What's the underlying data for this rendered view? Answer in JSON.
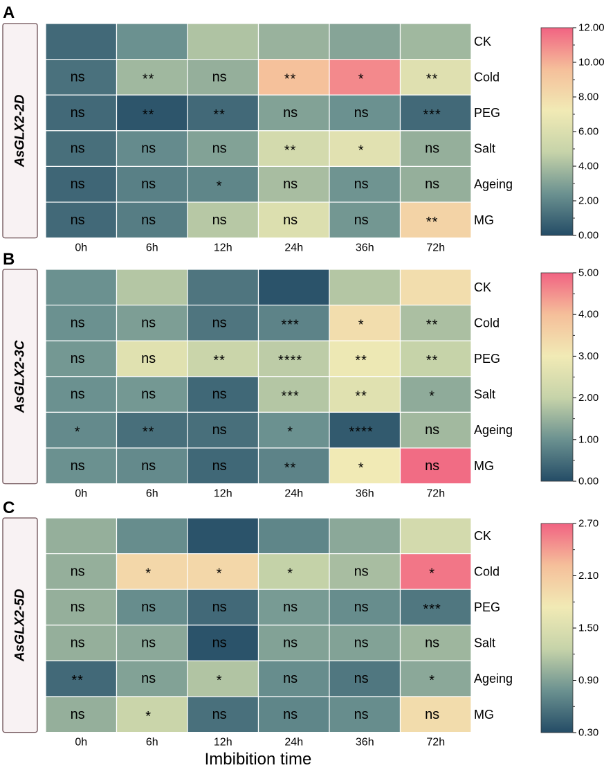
{
  "chart_data": [
    {
      "type": "heatmap",
      "panel": "A",
      "gene": "AsGLX2-2D",
      "rows": [
        "CK",
        "Cold",
        "PEG",
        "Salt",
        "Ageing",
        "MG"
      ],
      "columns": [
        "0h",
        "6h",
        "12h",
        "24h",
        "36h",
        "72h"
      ],
      "values": [
        [
          1.0,
          2.4,
          4.2,
          3.6,
          3.1,
          3.8
        ],
        [
          1.3,
          3.8,
          3.5,
          9.5,
          11.0,
          6.2
        ],
        [
          1.0,
          0.3,
          1.0,
          3.0,
          2.4,
          1.0
        ],
        [
          1.2,
          2.2,
          3.0,
          5.5,
          6.3,
          3.5
        ],
        [
          0.9,
          1.8,
          2.0,
          4.0,
          2.5,
          3.5
        ],
        [
          1.0,
          1.7,
          4.4,
          6.0,
          2.6,
          8.5
        ]
      ],
      "significance": [
        [
          "",
          "",
          "",
          "",
          "",
          ""
        ],
        [
          "ns",
          "**",
          "ns",
          "**",
          "*",
          "**"
        ],
        [
          "ns",
          "**",
          "**",
          "ns",
          "ns",
          "***"
        ],
        [
          "ns",
          "ns",
          "ns",
          "**",
          "*",
          "ns"
        ],
        [
          "ns",
          "ns",
          "*",
          "ns",
          "ns",
          "ns"
        ],
        [
          "ns",
          "ns",
          "ns",
          "ns",
          "ns",
          "**"
        ]
      ],
      "colorbar": {
        "min": 0.0,
        "max": 12.0,
        "ticks": [
          "0.00",
          "2.00",
          "4.00",
          "6.00",
          "8.00",
          "10.00",
          "12.00"
        ]
      }
    },
    {
      "type": "heatmap",
      "panel": "B",
      "gene": "AsGLX2-3C",
      "rows": [
        "CK",
        "Cold",
        "PEG",
        "Salt",
        "Ageing",
        "MG"
      ],
      "columns": [
        "0h",
        "6h",
        "12h",
        "24h",
        "36h",
        "72h"
      ],
      "values": [
        [
          1.0,
          1.8,
          0.6,
          0.1,
          1.8,
          3.3
        ],
        [
          1.0,
          1.2,
          0.6,
          0.8,
          3.3,
          1.7
        ],
        [
          1.1,
          2.6,
          2.1,
          1.9,
          2.9,
          2.0
        ],
        [
          1.0,
          1.1,
          0.4,
          1.8,
          2.6,
          1.4
        ],
        [
          0.9,
          0.5,
          0.5,
          1.0,
          0.2,
          1.6
        ],
        [
          1.0,
          0.9,
          0.4,
          0.8,
          3.0,
          4.9
        ]
      ],
      "significance": [
        [
          "",
          "",
          "",
          "",
          "",
          ""
        ],
        [
          "ns",
          "ns",
          "ns",
          "***",
          "*",
          "**"
        ],
        [
          "ns",
          "ns",
          "**",
          "****",
          "**",
          "**"
        ],
        [
          "ns",
          "ns",
          "ns",
          "***",
          "**",
          "*"
        ],
        [
          "*",
          "**",
          "ns",
          "*",
          "****",
          "ns"
        ],
        [
          "ns",
          "ns",
          "ns",
          "**",
          "*",
          "ns"
        ]
      ],
      "colorbar": {
        "min": 0.0,
        "max": 5.0,
        "ticks": [
          "0.00",
          "1.00",
          "2.00",
          "3.00",
          "4.00",
          "5.00"
        ]
      }
    },
    {
      "type": "heatmap",
      "panel": "C",
      "gene": "AsGLX2-5D",
      "rows": [
        "CK",
        "Cold",
        "PEG",
        "Salt",
        "Ageing",
        "MG"
      ],
      "columns": [
        "0h",
        "6h",
        "12h",
        "24h",
        "36h",
        "72h"
      ],
      "values": [
        [
          1.0,
          0.75,
          0.35,
          0.7,
          0.95,
          1.4
        ],
        [
          1.0,
          1.95,
          1.95,
          1.25,
          1.1,
          2.6
        ],
        [
          1.0,
          0.75,
          0.5,
          0.85,
          0.75,
          0.6
        ],
        [
          1.0,
          0.95,
          0.35,
          0.9,
          0.9,
          1.05
        ],
        [
          0.5,
          0.9,
          1.15,
          0.75,
          0.6,
          0.95
        ],
        [
          1.0,
          1.3,
          0.55,
          0.7,
          0.75,
          1.9
        ]
      ],
      "significance": [
        [
          "",
          "",
          "",
          "",
          "",
          ""
        ],
        [
          "ns",
          "*",
          "*",
          "*",
          "ns",
          "*"
        ],
        [
          "ns",
          "ns",
          "ns",
          "ns",
          "ns",
          "***"
        ],
        [
          "ns",
          "ns",
          "ns",
          "ns",
          "ns",
          "ns"
        ],
        [
          "**",
          "ns",
          "*",
          "ns",
          "ns",
          "*"
        ],
        [
          "ns",
          "*",
          "ns",
          "ns",
          "ns",
          "ns"
        ]
      ],
      "colorbar": {
        "min": 0.3,
        "max": 2.7,
        "ticks": [
          "0.30",
          "0.90",
          "1.50",
          "2.10",
          "2.70"
        ]
      }
    }
  ],
  "xlabel": "Imbibition time",
  "colormap": [
    "#244c66",
    "#6b9190",
    "#c6d3a9",
    "#f1eab5",
    "#f5bf9a",
    "#f16382"
  ]
}
